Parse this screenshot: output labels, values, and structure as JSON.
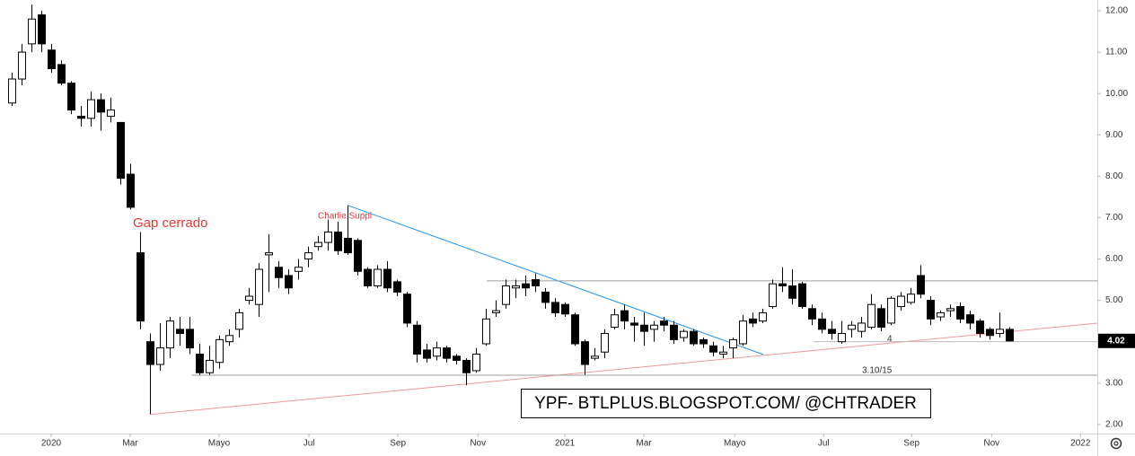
{
  "chart_data": {
    "type": "candlestick",
    "x": [
      -4,
      -3,
      -2,
      -1,
      0,
      1,
      2,
      3,
      4,
      5,
      6,
      7,
      8,
      9,
      10,
      11,
      12,
      13,
      14,
      15,
      16,
      17,
      18,
      19,
      20,
      21,
      22,
      23,
      24,
      25,
      26,
      27,
      28,
      29,
      30,
      31,
      32,
      33,
      34,
      35,
      36,
      37,
      38,
      39,
      40,
      41,
      42,
      43,
      44,
      45,
      46,
      47,
      48,
      49,
      50,
      51,
      52,
      53,
      54,
      55,
      56,
      57,
      58,
      59,
      60,
      61,
      62,
      63,
      64,
      65,
      66,
      67,
      68,
      69,
      70,
      71,
      72,
      73,
      74,
      75,
      76,
      77,
      78,
      79,
      80,
      81,
      82,
      83,
      84,
      85,
      86,
      87,
      88,
      89,
      90,
      91,
      92,
      93,
      94,
      95,
      96,
      97
    ],
    "open": [
      9.77,
      10.35,
      11.2,
      11.9,
      11.05,
      10.7,
      10.25,
      9.45,
      9.4,
      9.85,
      9.45,
      9.3,
      8.05,
      6.15,
      4.0,
      3.45,
      3.85,
      4.3,
      4.3,
      3.7,
      3.25,
      3.5,
      4.0,
      4.3,
      5.0,
      4.9,
      6.1,
      5.8,
      5.6,
      5.7,
      6.0,
      6.3,
      6.4,
      6.65,
      6.5,
      6.45,
      5.75,
      5.35,
      5.75,
      5.45,
      5.15,
      4.4,
      3.8,
      3.65,
      3.85,
      3.65,
      3.55,
      3.3,
      3.95,
      4.7,
      4.9,
      5.3,
      5.4,
      5.5,
      5.2,
      4.95,
      4.9,
      4.65,
      4.0,
      3.6,
      3.75,
      4.35,
      4.75,
      4.45,
      4.4,
      4.3,
      4.5,
      4.4,
      4.1,
      4.25,
      4.05,
      3.9,
      3.7,
      3.85,
      3.95,
      4.55,
      4.5,
      4.85,
      5.4,
      5.35,
      5.4,
      4.8,
      4.55,
      4.3,
      4.0,
      4.3,
      4.25,
      4.35,
      4.8,
      4.45,
      4.85,
      4.95,
      5.6,
      5.0,
      4.6,
      4.75,
      4.85,
      4.65,
      4.5,
      4.3,
      4.2,
      4.3
    ],
    "high": [
      10.5,
      11.2,
      12.15,
      12.0,
      11.2,
      10.8,
      10.3,
      9.7,
      10.05,
      10.0,
      9.9,
      9.3,
      8.3,
      6.65,
      4.2,
      4.45,
      4.6,
      4.6,
      4.6,
      3.95,
      3.9,
      4.15,
      4.3,
      4.8,
      5.3,
      5.9,
      6.6,
      5.95,
      5.75,
      6.0,
      6.3,
      6.55,
      6.95,
      6.9,
      7.3,
      6.5,
      5.8,
      5.85,
      5.95,
      5.5,
      5.2,
      4.5,
      3.95,
      4.0,
      3.9,
      3.7,
      3.6,
      3.85,
      4.8,
      5.0,
      5.5,
      5.5,
      5.6,
      5.65,
      5.3,
      5.05,
      4.95,
      4.7,
      4.05,
      3.85,
      4.3,
      4.8,
      4.9,
      4.6,
      4.7,
      4.5,
      4.6,
      4.5,
      4.3,
      4.3,
      4.1,
      4.0,
      3.9,
      4.1,
      4.65,
      4.7,
      4.8,
      5.5,
      5.8,
      5.75,
      5.45,
      4.9,
      4.7,
      4.5,
      4.5,
      4.5,
      4.6,
      5.15,
      4.9,
      5.1,
      5.2,
      5.3,
      5.85,
      5.1,
      4.75,
      4.9,
      4.95,
      4.75,
      4.55,
      4.35,
      4.7,
      4.35
    ],
    "low": [
      9.7,
      10.2,
      11.0,
      11.0,
      10.5,
      10.2,
      9.5,
      9.2,
      9.2,
      9.1,
      9.3,
      7.8,
      7.2,
      4.3,
      2.25,
      3.3,
      3.6,
      3.9,
      3.7,
      3.2,
      3.2,
      3.35,
      3.9,
      4.1,
      4.9,
      4.6,
      5.2,
      5.3,
      5.15,
      5.5,
      5.8,
      6.2,
      6.2,
      6.1,
      6.1,
      5.6,
      5.3,
      5.3,
      5.2,
      5.1,
      4.35,
      3.5,
      3.5,
      3.55,
      3.5,
      3.45,
      2.95,
      3.25,
      3.9,
      4.6,
      4.8,
      5.05,
      5.1,
      5.2,
      4.8,
      4.6,
      4.6,
      3.9,
      3.2,
      3.55,
      3.6,
      4.3,
      4.3,
      4.0,
      3.9,
      4.0,
      4.25,
      3.95,
      4.0,
      3.9,
      3.85,
      3.65,
      3.6,
      3.6,
      3.9,
      4.35,
      4.45,
      4.8,
      5.2,
      4.9,
      4.8,
      4.4,
      4.2,
      4.05,
      3.95,
      4.1,
      4.1,
      4.3,
      4.25,
      4.4,
      4.75,
      4.9,
      5.05,
      4.4,
      4.5,
      4.6,
      4.45,
      4.3,
      4.1,
      4.05,
      4.1,
      4.0
    ],
    "close": [
      10.35,
      11.0,
      11.8,
      11.2,
      10.6,
      10.25,
      9.6,
      9.4,
      9.85,
      9.55,
      9.6,
      7.95,
      7.25,
      4.5,
      3.45,
      3.85,
      4.5,
      4.2,
      3.85,
      3.25,
      3.55,
      4.05,
      4.15,
      4.7,
      5.1,
      5.75,
      6.15,
      5.55,
      5.3,
      5.8,
      6.15,
      6.4,
      6.65,
      6.2,
      6.15,
      5.7,
      5.35,
      5.75,
      5.3,
      5.2,
      4.45,
      3.7,
      3.6,
      3.85,
      3.6,
      3.55,
      3.25,
      3.7,
      4.55,
      4.75,
      5.35,
      5.35,
      5.3,
      5.35,
      4.95,
      4.7,
      4.67,
      3.95,
      3.45,
      3.65,
      4.2,
      4.65,
      4.5,
      4.4,
      4.25,
      4.4,
      4.4,
      4.05,
      4.25,
      3.95,
      3.95,
      3.75,
      3.75,
      4.05,
      4.5,
      4.45,
      4.7,
      5.4,
      5.35,
      5.05,
      4.85,
      4.55,
      4.3,
      4.2,
      4.2,
      4.4,
      4.45,
      4.9,
      4.35,
      5.05,
      5.1,
      5.15,
      5.15,
      4.55,
      4.7,
      4.8,
      4.55,
      4.45,
      4.2,
      4.15,
      4.3,
      4.02
    ],
    "up_color": "#ffffff",
    "down_color": "#000000",
    "last_price": {
      "value": 4.02,
      "label": "4.02"
    },
    "xlim": [
      -5.18,
      105.9
    ],
    "xticks": [
      {
        "value": 0,
        "label": "2020"
      },
      {
        "value": 8.0,
        "label": "Mar"
      },
      {
        "value": 17.0,
        "label": "Mayo"
      },
      {
        "value": 26.1,
        "label": "Jul"
      },
      {
        "value": 35.1,
        "label": "Sep"
      },
      {
        "value": 43.2,
        "label": "Nov"
      },
      {
        "value": 52.0,
        "label": "2021"
      },
      {
        "value": 60.0,
        "label": "Mar"
      },
      {
        "value": 69.2,
        "label": "Mayo"
      },
      {
        "value": 78.2,
        "label": "Jul"
      },
      {
        "value": 87.1,
        "label": "Sep"
      },
      {
        "value": 95.2,
        "label": "Nov"
      },
      {
        "value": 104.2,
        "label": "2022"
      }
    ],
    "ylim": [
      1.78,
      12.26
    ],
    "yticks": [
      {
        "value": 2,
        "label": "2.00"
      },
      {
        "value": 3,
        "label": "3.00"
      },
      {
        "value": 4,
        "label": "4.00"
      },
      {
        "value": 5,
        "label": "5.00"
      },
      {
        "value": 6,
        "label": "6.00"
      },
      {
        "value": 7,
        "label": "7.00"
      },
      {
        "value": 8,
        "label": "8.00"
      },
      {
        "value": 9,
        "label": "9.00"
      },
      {
        "value": 10,
        "label": "10.00"
      },
      {
        "value": 11,
        "label": "11.00"
      },
      {
        "value": 12,
        "label": "12.00"
      }
    ],
    "lines": [
      {
        "color": "#2196f3",
        "x": [
          30.1,
          72.1
        ],
        "y": [
          7.29,
          3.69
        ]
      },
      {
        "color": "#ef9a9a",
        "x": [
          10,
          105.9
        ],
        "y": [
          2.24,
          4.45
        ]
      },
      {
        "color": "#9e9e9e",
        "x": [
          44.1,
          105.9
        ],
        "y": [
          5.47,
          5.47
        ]
      },
      {
        "color": "#9e9e9e",
        "x": [
          14.2,
          105.9
        ],
        "y": [
          3.19,
          3.19
        ]
      },
      {
        "color": "#bdbdbd",
        "x": [
          77.2,
          105.9
        ],
        "y": [
          4.0,
          4.0
        ]
      }
    ],
    "annotations": [
      "Gap cerrado",
      "Charlie Suppi",
      "4",
      "3.10/15"
    ],
    "watermark": "YPF- BTLPLUS.BLOGSPOT.COM/ @CHTRADER"
  }
}
